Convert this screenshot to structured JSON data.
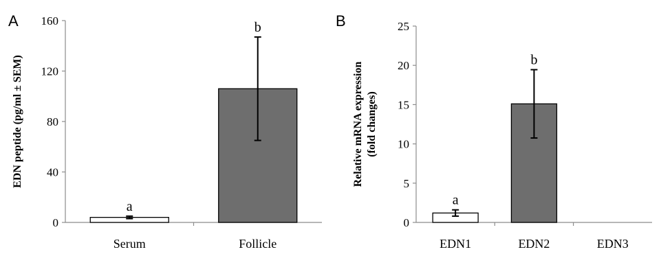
{
  "colors": {
    "axis": "#8c8c8c",
    "bar_outline": "#000000",
    "white_bar": "#ffffff",
    "dark_bar": "#6e6e6e",
    "text": "#000000"
  },
  "chart_data": [
    {
      "panel_label": "A",
      "type": "bar",
      "categories": [
        "Serum",
        "Follicle"
      ],
      "values": [
        4,
        106
      ],
      "errors": [
        1,
        41
      ],
      "significance_labels": [
        "a",
        "b"
      ],
      "bar_colors": [
        "#ffffff",
        "#6e6e6e"
      ],
      "ylabel": "EDN peptide (pg/ml ± SEM)",
      "ylim": [
        0,
        160
      ],
      "yticks": [
        0,
        40,
        80,
        120,
        160
      ],
      "ytick_labels": [
        "0",
        "40",
        "80",
        "120",
        "160"
      ],
      "grid": false,
      "legend": "none"
    },
    {
      "panel_label": "B",
      "type": "bar",
      "categories": [
        "EDN1",
        "EDN2",
        "EDN3"
      ],
      "values": [
        1.2,
        15.1,
        0
      ],
      "errors": [
        0.4,
        4.35,
        0
      ],
      "significance_labels": [
        "a",
        "b",
        ""
      ],
      "bar_colors": [
        "#ffffff",
        "#6e6e6e",
        "#ffffff"
      ],
      "ylabel_lines": [
        "Relative mRNA expression",
        "(fold changes)"
      ],
      "ylim": [
        0,
        25
      ],
      "yticks": [
        0,
        5,
        10,
        15,
        20,
        25
      ],
      "ytick_labels": [
        "0",
        "5",
        "10",
        "15",
        "20",
        "25"
      ],
      "grid": false,
      "legend": "none"
    }
  ]
}
